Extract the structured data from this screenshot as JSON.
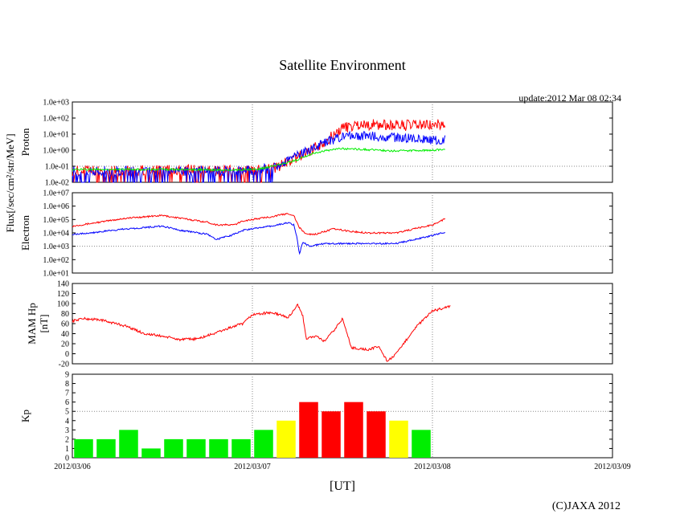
{
  "chart_data": {
    "title": "Satellite Environment",
    "update_label": "update:2012 Mar 08 02:34",
    "xlabel": "[UT]",
    "copyright": "(C)JAXA 2012",
    "x_tick_labels": [
      "2012/03/06",
      "2012/03/07",
      "2012/03/08",
      "2012/03/09"
    ],
    "xlim_days": [
      0,
      3
    ],
    "shared_ylabel": "Flux[/sec/cm²/str/MeV]",
    "panels": [
      {
        "id": "proton",
        "type": "line",
        "ylabel": "Proton",
        "yscale": "log",
        "ylim_exp": [
          -2,
          3
        ],
        "y_tick_labels": [
          "1.0e+03",
          "1.0e+02",
          "1.0e+01",
          "1.0e+00",
          "1.0e-01",
          "1.0e-02"
        ],
        "series": [
          {
            "name": "proton-red",
            "color": "#ff0000",
            "noise": 0.35,
            "spikes": true,
            "x": [
              0,
              0.3,
              0.6,
              0.9,
              1.05,
              1.15,
              1.25,
              1.35,
              1.45,
              1.5,
              1.6,
              1.8,
              2.0,
              2.07
            ],
            "log10": [
              -1.3,
              -1.3,
              -1.25,
              -1.3,
              -1.25,
              -1.0,
              -0.45,
              0.2,
              0.9,
              1.4,
              1.6,
              1.55,
              1.55,
              1.6
            ]
          },
          {
            "name": "proton-blue",
            "color": "#0000ff",
            "noise": 0.3,
            "spikes": true,
            "x": [
              0,
              0.3,
              0.6,
              0.9,
              1.05,
              1.15,
              1.25,
              1.35,
              1.45,
              1.5,
              1.6,
              1.8,
              2.0,
              2.07
            ],
            "log10": [
              -1.3,
              -1.3,
              -1.3,
              -1.3,
              -1.2,
              -0.9,
              -0.35,
              0.2,
              0.65,
              0.8,
              0.9,
              0.8,
              0.65,
              0.65
            ]
          },
          {
            "name": "proton-green",
            "color": "#00ee00",
            "noise": 0.06,
            "spikes": false,
            "x": [
              0,
              0.3,
              0.6,
              0.9,
              1.05,
              1.15,
              1.25,
              1.35,
              1.45,
              1.5,
              1.6,
              1.8,
              2.0,
              2.07
            ],
            "log10": [
              -1.2,
              -1.2,
              -1.2,
              -1.25,
              -1.15,
              -0.9,
              -0.6,
              -0.15,
              0.05,
              0.1,
              0.05,
              -0.05,
              0.0,
              0.05
            ]
          }
        ]
      },
      {
        "id": "electron",
        "type": "line",
        "ylabel": "Electron",
        "yscale": "log",
        "ylim_exp": [
          1,
          7
        ],
        "y_tick_labels": [
          "1.0e+07",
          "1.0e+06",
          "1.0e+05",
          "1.0e+04",
          "1.0e+03",
          "1.0e+02",
          "1.0e+01"
        ],
        "series": [
          {
            "name": "electron-red",
            "color": "#ff0000",
            "noise": 0.06,
            "spikes": false,
            "x": [
              0,
              0.1,
              0.3,
              0.5,
              0.6,
              0.75,
              0.8,
              0.9,
              0.95,
              1.0,
              1.1,
              1.2,
              1.23,
              1.26,
              1.3,
              1.35,
              1.45,
              1.55,
              1.65,
              1.8,
              1.9,
              2.0,
              2.07
            ],
            "log10": [
              4.5,
              4.7,
              5.1,
              5.3,
              5.1,
              4.8,
              4.6,
              4.6,
              4.9,
              5.0,
              5.2,
              5.45,
              5.3,
              4.4,
              3.9,
              3.9,
              4.3,
              4.1,
              4.0,
              4.0,
              4.3,
              4.6,
              5.05
            ]
          },
          {
            "name": "electron-blue",
            "color": "#0000ff",
            "noise": 0.06,
            "spikes": false,
            "x": [
              0,
              0.1,
              0.3,
              0.5,
              0.6,
              0.75,
              0.8,
              0.9,
              0.95,
              1.0,
              1.1,
              1.2,
              1.23,
              1.25,
              1.26,
              1.28,
              1.32,
              1.4,
              1.5,
              1.65,
              1.8,
              1.9,
              2.0,
              2.07
            ],
            "log10": [
              3.9,
              4.0,
              4.3,
              4.5,
              4.2,
              3.9,
              3.5,
              3.9,
              4.2,
              4.3,
              4.5,
              4.75,
              4.6,
              3.5,
              2.4,
              3.3,
              3.0,
              3.2,
              3.2,
              3.2,
              3.2,
              3.5,
              3.8,
              4.05
            ]
          }
        ]
      },
      {
        "id": "mam-hp",
        "type": "line",
        "ylabel": "MAM Hp",
        "yunit": "[nT]",
        "ylim": [
          -20,
          140
        ],
        "y_tick_labels": [
          "140",
          "120",
          "100",
          "80",
          "60",
          "40",
          "20",
          "0",
          "-20"
        ],
        "series": [
          {
            "name": "hp-red",
            "color": "#ff0000",
            "noise": 2.5,
            "spikes": false,
            "x": [
              0,
              0.05,
              0.15,
              0.3,
              0.4,
              0.5,
              0.6,
              0.7,
              0.8,
              0.9,
              0.95,
              1.0,
              1.1,
              1.15,
              1.2,
              1.25,
              1.28,
              1.3,
              1.35,
              1.4,
              1.45,
              1.5,
              1.55,
              1.6,
              1.65,
              1.7,
              1.75,
              1.8,
              1.9,
              2.0,
              2.1
            ],
            "y": [
              65,
              70,
              68,
              55,
              40,
              35,
              28,
              30,
              42,
              55,
              60,
              78,
              82,
              78,
              72,
              98,
              75,
              30,
              35,
              25,
              45,
              70,
              12,
              10,
              8,
              15,
              -15,
              0,
              50,
              85,
              95
            ]
          }
        ]
      },
      {
        "id": "kp",
        "type": "bar",
        "ylabel": "Kp",
        "ylim": [
          0,
          9
        ],
        "y_tick_labels": [
          "9",
          "8",
          "7",
          "6",
          "5",
          "4",
          "3",
          "2",
          "1",
          "0"
        ],
        "bar_width_days": 0.105,
        "values": [
          2,
          2,
          3,
          1,
          2,
          2,
          2,
          2,
          3,
          4,
          6,
          5,
          6,
          5,
          4,
          3
        ],
        "colors": [
          "#00ee00",
          "#00ee00",
          "#00ee00",
          "#00ee00",
          "#00ee00",
          "#00ee00",
          "#00ee00",
          "#00ee00",
          "#00ee00",
          "#ffff00",
          "#ff0000",
          "#ff0000",
          "#ff0000",
          "#ff0000",
          "#ffff00",
          "#00ee00"
        ]
      }
    ]
  }
}
